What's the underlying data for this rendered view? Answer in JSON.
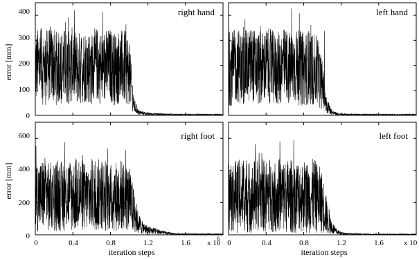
{
  "chart_data": [
    {
      "type": "line",
      "title": "right hand",
      "xlabel": "",
      "ylabel": "error [mm]",
      "xlim": [
        0,
        2
      ],
      "ylim": [
        0,
        450
      ],
      "yticks": [
        0,
        100,
        200,
        300,
        400
      ],
      "xtick_labels_shown": false,
      "grid": false,
      "series": [
        {
          "x": [
            0,
            0.05,
            0.1,
            0.15,
            0.2,
            0.25,
            0.3,
            0.35,
            0.4,
            0.45,
            0.5,
            0.55,
            0.6,
            0.65,
            0.7,
            0.75,
            0.8,
            0.85,
            0.9,
            0.95,
            1.0,
            1.02,
            1.05,
            1.1,
            1.2,
            1.4,
            1.6,
            1.8,
            2.0
          ],
          "y": [
            190,
            205,
            180,
            210,
            195,
            185,
            200,
            190,
            205,
            185,
            195,
            200,
            185,
            205,
            190,
            195,
            200,
            185,
            195,
            190,
            180,
            120,
            40,
            12,
            6,
            4,
            3,
            3,
            3
          ],
          "noise_amplitude": 150,
          "max_peak": 430
        }
      ]
    },
    {
      "type": "line",
      "title": "left hand",
      "xlabel": "",
      "ylabel": "",
      "xlim": [
        0,
        2
      ],
      "ylim": [
        0,
        450
      ],
      "xtick_labels_shown": false,
      "grid": false,
      "series": [
        {
          "x": [
            0,
            0.05,
            0.1,
            0.15,
            0.2,
            0.25,
            0.3,
            0.35,
            0.4,
            0.45,
            0.5,
            0.55,
            0.6,
            0.65,
            0.7,
            0.75,
            0.8,
            0.85,
            0.9,
            0.95,
            1.0,
            1.05,
            1.1,
            1.15,
            1.2,
            1.4,
            1.6,
            1.8,
            2.0
          ],
          "y": [
            185,
            190,
            200,
            185,
            195,
            205,
            190,
            185,
            200,
            195,
            180,
            190,
            200,
            185,
            195,
            190,
            185,
            195,
            180,
            175,
            120,
            40,
            12,
            6,
            4,
            3,
            3,
            3,
            3
          ],
          "noise_amplitude": 150,
          "max_peak": 440
        }
      ]
    },
    {
      "type": "line",
      "title": "right foot",
      "xlabel": "iteration steps",
      "ylabel": "error [mm]",
      "xlim": [
        0,
        2
      ],
      "ylim": [
        0,
        700
      ],
      "yticks": [
        0,
        200,
        400,
        600
      ],
      "xticks": [
        0,
        0.4,
        0.8,
        1.2,
        1.6
      ],
      "x_multiplier": "x 10",
      "x_multiplier_exponent": "6",
      "grid": false,
      "series": [
        {
          "x": [
            0,
            0.05,
            0.1,
            0.15,
            0.2,
            0.25,
            0.3,
            0.35,
            0.4,
            0.45,
            0.5,
            0.55,
            0.6,
            0.65,
            0.7,
            0.75,
            0.8,
            0.85,
            0.9,
            0.95,
            1.0,
            1.05,
            1.1,
            1.15,
            1.2,
            1.3,
            1.4,
            1.5,
            1.6,
            1.8,
            2.0
          ],
          "y": [
            250,
            240,
            260,
            230,
            250,
            245,
            235,
            255,
            240,
            250,
            245,
            230,
            250,
            240,
            255,
            245,
            230,
            240,
            250,
            235,
            220,
            150,
            70,
            40,
            30,
            20,
            10,
            5,
            4,
            4,
            4
          ],
          "noise_amplitude": 230,
          "max_peak": 600
        }
      ]
    },
    {
      "type": "line",
      "title": "left foot",
      "xlabel": "iteration steps",
      "ylabel": "",
      "xlim": [
        0,
        2
      ],
      "ylim": [
        0,
        700
      ],
      "xticks": [
        0,
        0.4,
        0.8,
        1.2,
        1.6
      ],
      "x_multiplier": "x 10",
      "x_multiplier_exponent": "6",
      "grid": false,
      "series": [
        {
          "x": [
            0,
            0.05,
            0.1,
            0.15,
            0.2,
            0.25,
            0.3,
            0.35,
            0.4,
            0.45,
            0.5,
            0.55,
            0.6,
            0.65,
            0.7,
            0.75,
            0.8,
            0.85,
            0.9,
            0.95,
            1.0,
            1.05,
            1.1,
            1.15,
            1.2,
            1.3,
            1.4,
            1.6,
            1.8,
            2.0
          ],
          "y": [
            240,
            250,
            235,
            255,
            240,
            230,
            250,
            245,
            240,
            255,
            235,
            250,
            240,
            245,
            230,
            250,
            240,
            235,
            245,
            230,
            200,
            110,
            45,
            20,
            10,
            5,
            4,
            3,
            3,
            3
          ],
          "noise_amplitude": 230,
          "max_peak": 630
        }
      ]
    }
  ]
}
